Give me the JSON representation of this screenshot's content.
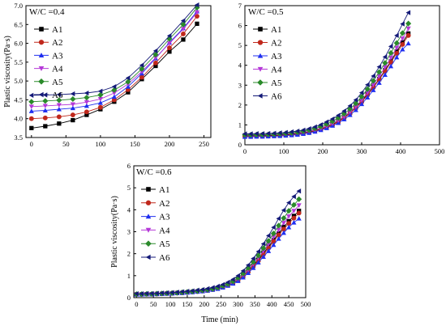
{
  "chart_data": [
    {
      "type": "line",
      "annotation": "W/C =0.4",
      "xlabel": "",
      "ylabel": "Plastic viscosity(Pa·s)",
      "xlim": [
        -8,
        260
      ],
      "ylim": [
        3.5,
        7.0
      ],
      "xticks": [
        "0",
        "50",
        "100",
        "150",
        "200",
        "250"
      ],
      "yticks": [
        "3.5",
        "4.0",
        "4.5",
        "5.0",
        "5.5",
        "6.0",
        "6.5",
        "7.0"
      ],
      "legend_position": "top-left",
      "x": [
        0,
        20,
        40,
        60,
        80,
        100,
        120,
        140,
        160,
        180,
        200,
        220,
        240
      ],
      "series": [
        {
          "name": "A1",
          "marker": "square",
          "color": "#000000",
          "values": [
            3.75,
            3.8,
            3.87,
            3.96,
            4.1,
            4.25,
            4.45,
            4.7,
            5.05,
            5.4,
            5.78,
            6.1,
            6.52
          ]
        },
        {
          "name": "A2",
          "marker": "circle",
          "color": "#c0281c",
          "values": [
            4.0,
            4.02,
            4.05,
            4.1,
            4.18,
            4.3,
            4.5,
            4.77,
            5.1,
            5.48,
            5.88,
            6.25,
            6.72
          ]
        },
        {
          "name": "A3",
          "marker": "triangle-up",
          "color": "#1f2ff0",
          "values": [
            4.2,
            4.22,
            4.25,
            4.28,
            4.34,
            4.42,
            4.58,
            4.85,
            5.2,
            5.6,
            6.02,
            6.4,
            6.85
          ]
        },
        {
          "name": "A4",
          "marker": "triangle-down",
          "color": "#b538d8",
          "values": [
            4.32,
            4.34,
            4.36,
            4.38,
            4.44,
            4.52,
            4.68,
            4.92,
            5.25,
            5.62,
            6.0,
            6.38,
            6.82
          ]
        },
        {
          "name": "A5",
          "marker": "diamond",
          "color": "#2a8a2a",
          "values": [
            4.45,
            4.47,
            4.49,
            4.52,
            4.56,
            4.63,
            4.76,
            4.98,
            5.32,
            5.7,
            6.12,
            6.5,
            6.95
          ]
        },
        {
          "name": "A6",
          "marker": "triangle-left",
          "color": "#141a78",
          "values": [
            4.62,
            4.63,
            4.64,
            4.66,
            4.68,
            4.73,
            4.85,
            5.08,
            5.42,
            5.8,
            6.2,
            6.6,
            7.02
          ]
        }
      ]
    },
    {
      "type": "line",
      "annotation": "W/C =0.5",
      "xlabel": "",
      "ylabel": "",
      "xlim": [
        0,
        500
      ],
      "ylim": [
        0,
        7
      ],
      "xticks": [
        "0",
        "100",
        "200",
        "300",
        "400",
        "500"
      ],
      "yticks": [
        "0",
        "1",
        "2",
        "3",
        "4",
        "5",
        "6",
        "7"
      ],
      "legend_position": "top-left",
      "x": [
        0,
        15,
        30,
        45,
        60,
        75,
        90,
        105,
        120,
        135,
        150,
        165,
        180,
        195,
        210,
        225,
        240,
        255,
        270,
        285,
        300,
        315,
        330,
        345,
        360,
        375,
        390,
        405,
        420
      ],
      "series": [
        {
          "name": "A1",
          "marker": "square",
          "color": "#000000",
          "values": [
            0.45,
            0.45,
            0.46,
            0.46,
            0.47,
            0.48,
            0.49,
            0.51,
            0.53,
            0.56,
            0.6,
            0.65,
            0.72,
            0.8,
            0.9,
            1.02,
            1.18,
            1.38,
            1.6,
            1.88,
            2.2,
            2.55,
            2.92,
            3.3,
            3.75,
            4.2,
            4.7,
            5.15,
            5.6
          ]
        },
        {
          "name": "A2",
          "marker": "circle",
          "color": "#c0281c",
          "values": [
            0.42,
            0.42,
            0.43,
            0.43,
            0.44,
            0.45,
            0.46,
            0.48,
            0.5,
            0.53,
            0.57,
            0.62,
            0.69,
            0.78,
            0.88,
            1.0,
            1.15,
            1.35,
            1.58,
            1.85,
            2.15,
            2.5,
            2.88,
            3.28,
            3.7,
            4.15,
            4.6,
            5.05,
            5.5
          ]
        },
        {
          "name": "A3",
          "marker": "triangle-up",
          "color": "#1f2ff0",
          "values": [
            0.4,
            0.4,
            0.41,
            0.41,
            0.42,
            0.43,
            0.44,
            0.46,
            0.48,
            0.51,
            0.55,
            0.6,
            0.66,
            0.74,
            0.84,
            0.96,
            1.1,
            1.28,
            1.5,
            1.75,
            2.05,
            2.38,
            2.75,
            3.12,
            3.52,
            3.95,
            4.4,
            4.8,
            5.1
          ]
        },
        {
          "name": "A4",
          "marker": "triangle-down",
          "color": "#b538d8",
          "values": [
            0.48,
            0.48,
            0.49,
            0.49,
            0.5,
            0.51,
            0.52,
            0.54,
            0.56,
            0.59,
            0.63,
            0.68,
            0.75,
            0.83,
            0.94,
            1.07,
            1.23,
            1.42,
            1.65,
            1.92,
            2.25,
            2.62,
            3.02,
            3.45,
            3.9,
            4.38,
            4.88,
            5.35,
            5.85
          ]
        },
        {
          "name": "A5",
          "marker": "diamond",
          "color": "#2a8a2a",
          "values": [
            0.5,
            0.5,
            0.51,
            0.51,
            0.52,
            0.53,
            0.55,
            0.57,
            0.6,
            0.63,
            0.68,
            0.74,
            0.82,
            0.92,
            1.04,
            1.18,
            1.35,
            1.56,
            1.8,
            2.08,
            2.42,
            2.8,
            3.22,
            3.66,
            4.12,
            4.62,
            5.12,
            5.62,
            6.1
          ]
        },
        {
          "name": "A6",
          "marker": "triangle-left",
          "color": "#141a78",
          "values": [
            0.55,
            0.55,
            0.56,
            0.56,
            0.57,
            0.58,
            0.6,
            0.62,
            0.65,
            0.69,
            0.74,
            0.81,
            0.9,
            1.01,
            1.15,
            1.3,
            1.48,
            1.7,
            1.96,
            2.26,
            2.62,
            3.02,
            3.46,
            3.92,
            4.42,
            4.95,
            5.5,
            6.08,
            6.65
          ]
        }
      ]
    },
    {
      "type": "line",
      "annotation": "W/C =0.6",
      "xlabel": "Time (min)",
      "ylabel": "Plastic viscosity(Pa·s)",
      "xlim": [
        -8,
        500
      ],
      "ylim": [
        0,
        6
      ],
      "xticks": [
        "0",
        "50",
        "100",
        "150",
        "200",
        "250",
        "300",
        "350",
        "400",
        "450",
        "500"
      ],
      "yticks": [
        "0",
        "1",
        "2",
        "3",
        "4",
        "5",
        "6"
      ],
      "legend_position": "top-left",
      "x": [
        0,
        15,
        30,
        45,
        60,
        75,
        90,
        105,
        120,
        135,
        150,
        165,
        180,
        195,
        210,
        225,
        240,
        255,
        270,
        285,
        300,
        315,
        330,
        345,
        360,
        375,
        390,
        405,
        420,
        435,
        450,
        465,
        480
      ],
      "series": [
        {
          "name": "A1",
          "marker": "square",
          "color": "#000000",
          "values": [
            0.15,
            0.15,
            0.16,
            0.16,
            0.17,
            0.18,
            0.19,
            0.2,
            0.21,
            0.22,
            0.24,
            0.26,
            0.28,
            0.3,
            0.33,
            0.37,
            0.42,
            0.48,
            0.56,
            0.66,
            0.8,
            0.98,
            1.2,
            1.45,
            1.72,
            2.02,
            2.32,
            2.62,
            2.92,
            3.22,
            3.48,
            3.72,
            3.95
          ]
        },
        {
          "name": "A2",
          "marker": "circle",
          "color": "#c0281c",
          "values": [
            0.15,
            0.15,
            0.16,
            0.16,
            0.17,
            0.18,
            0.19,
            0.2,
            0.21,
            0.22,
            0.24,
            0.26,
            0.28,
            0.3,
            0.33,
            0.37,
            0.42,
            0.48,
            0.56,
            0.66,
            0.8,
            0.97,
            1.18,
            1.42,
            1.68,
            1.96,
            2.25,
            2.55,
            2.85,
            3.12,
            3.38,
            3.62,
            3.85
          ]
        },
        {
          "name": "A3",
          "marker": "triangle-up",
          "color": "#1f2ff0",
          "values": [
            0.14,
            0.14,
            0.15,
            0.15,
            0.16,
            0.17,
            0.18,
            0.19,
            0.2,
            0.21,
            0.23,
            0.25,
            0.27,
            0.29,
            0.32,
            0.36,
            0.4,
            0.46,
            0.54,
            0.64,
            0.76,
            0.92,
            1.12,
            1.35,
            1.6,
            1.86,
            2.12,
            2.4,
            2.68,
            2.95,
            3.2,
            3.42,
            3.6
          ]
        },
        {
          "name": "A4",
          "marker": "triangle-down",
          "color": "#b538d8",
          "values": [
            0.15,
            0.15,
            0.16,
            0.16,
            0.17,
            0.18,
            0.19,
            0.2,
            0.21,
            0.22,
            0.24,
            0.26,
            0.28,
            0.3,
            0.34,
            0.38,
            0.43,
            0.5,
            0.58,
            0.7,
            0.85,
            1.04,
            1.27,
            1.53,
            1.82,
            2.12,
            2.44,
            2.76,
            3.08,
            3.4,
            3.7,
            3.95,
            4.2
          ]
        },
        {
          "name": "A5",
          "marker": "diamond",
          "color": "#2a8a2a",
          "values": [
            0.16,
            0.16,
            0.17,
            0.17,
            0.18,
            0.19,
            0.2,
            0.21,
            0.22,
            0.24,
            0.26,
            0.28,
            0.3,
            0.33,
            0.36,
            0.4,
            0.46,
            0.53,
            0.62,
            0.74,
            0.9,
            1.1,
            1.35,
            1.62,
            1.92,
            2.25,
            2.58,
            2.92,
            3.28,
            3.62,
            3.95,
            4.22,
            4.48
          ]
        },
        {
          "name": "A6",
          "marker": "triangle-left",
          "color": "#141a78",
          "values": [
            0.18,
            0.18,
            0.19,
            0.19,
            0.2,
            0.21,
            0.22,
            0.23,
            0.25,
            0.27,
            0.29,
            0.31,
            0.34,
            0.37,
            0.41,
            0.46,
            0.52,
            0.6,
            0.7,
            0.83,
            1.0,
            1.22,
            1.48,
            1.78,
            2.1,
            2.45,
            2.82,
            3.2,
            3.6,
            3.98,
            4.32,
            4.6,
            4.85
          ]
        }
      ]
    }
  ]
}
